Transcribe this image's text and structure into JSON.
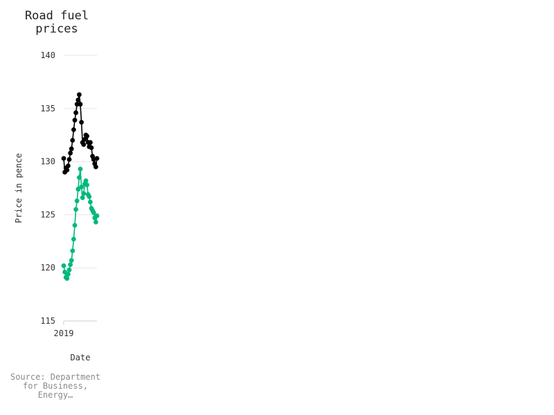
{
  "header": {
    "title": "Road fuel prices"
  },
  "footer": {
    "source": "Source: Department for Business, Energy…"
  },
  "chart_data": {
    "type": "line",
    "title": "Road fuel prices",
    "xlabel": "Date",
    "ylabel": "Price in pence",
    "ylim": [
      115,
      140
    ],
    "y_ticks": [
      115,
      120,
      125,
      130,
      135,
      140
    ],
    "x_tick_labels": [
      "2019"
    ],
    "grid": "horizontal",
    "series": [
      {
        "color": "#000000",
        "values": [
          130.3,
          129.0,
          129.4,
          129.2,
          129.6,
          130.2,
          130.8,
          131.2,
          132.0,
          133.0,
          133.9,
          134.6,
          135.4,
          135.8,
          136.3,
          135.4,
          133.7,
          131.8,
          131.6,
          132.1,
          132.5,
          132.4,
          131.8,
          131.4,
          131.8,
          131.3,
          130.5,
          130.2,
          129.8,
          129.5,
          130.3
        ]
      },
      {
        "color": "#00b97a",
        "values": [
          120.2,
          119.6,
          119.1,
          119.0,
          119.4,
          119.8,
          120.3,
          120.7,
          121.6,
          122.7,
          124.0,
          125.5,
          126.3,
          127.4,
          128.5,
          129.3,
          127.6,
          126.6,
          127.0,
          127.9,
          128.2,
          127.8,
          126.9,
          126.7,
          126.2,
          125.6,
          125.4,
          125.2,
          124.7,
          124.3,
          124.9
        ]
      }
    ]
  }
}
